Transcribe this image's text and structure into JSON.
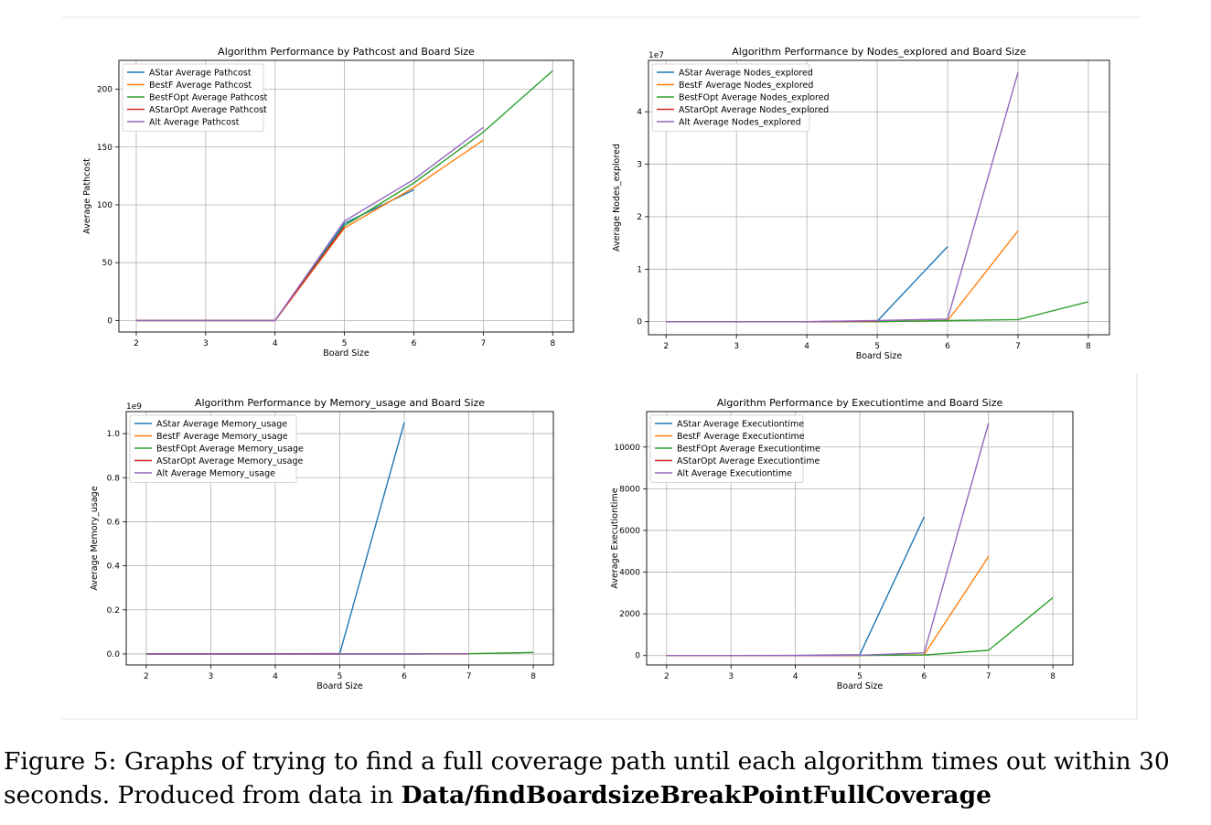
{
  "colors": {
    "AStar": "#1f77b4",
    "BestF": "#ff7f0e",
    "BestFOpt": "#2ca02c",
    "AStarOpt": "#d62728",
    "Alt": "#9467bd"
  },
  "chart_data": [
    {
      "type": "line",
      "title": "Algorithm Performance by Pathcost and Board Size",
      "xlabel": "Board Size",
      "ylabel": "Average Pathcost",
      "offset_label": "",
      "xlim": [
        1.75,
        8.3
      ],
      "ylim": [
        -10,
        225
      ],
      "xticks": [
        2,
        3,
        4,
        5,
        6,
        7,
        8
      ],
      "yticks": [
        0,
        50,
        100,
        150,
        200
      ],
      "ytick_labels": [
        "0",
        "50",
        "100",
        "150",
        "200"
      ],
      "grid": true,
      "legend_position": "upper left",
      "series": [
        {
          "name": "AStar Average Pathcost",
          "color_key": "AStar",
          "x": [
            2,
            3,
            4,
            5,
            6
          ],
          "y": [
            0,
            0,
            0,
            84,
            113
          ]
        },
        {
          "name": "BestF Average Pathcost",
          "color_key": "BestF",
          "x": [
            2,
            3,
            4,
            5,
            6,
            7
          ],
          "y": [
            0,
            0,
            0,
            80,
            115,
            156
          ]
        },
        {
          "name": "BestFOpt Average Pathcost",
          "color_key": "BestFOpt",
          "x": [
            2,
            3,
            4,
            5,
            6,
            7,
            8
          ],
          "y": [
            0,
            0,
            0,
            82,
            119,
            163,
            216
          ]
        },
        {
          "name": "AStarOpt Average Pathcost",
          "color_key": "AStarOpt",
          "x": [
            2,
            3,
            4,
            5
          ],
          "y": [
            0,
            0,
            0,
            81
          ]
        },
        {
          "name": "Alt Average Pathcost",
          "color_key": "Alt",
          "x": [
            2,
            3,
            4,
            5,
            6,
            7
          ],
          "y": [
            0,
            0,
            0,
            86,
            122,
            167
          ]
        }
      ]
    },
    {
      "type": "line",
      "title": "Algorithm Performance by Nodes_explored and Board Size",
      "xlabel": "Board Size",
      "ylabel": "Average Nodes_explored",
      "offset_label": "1e7",
      "xlim": [
        1.75,
        8.3
      ],
      "ylim": [
        -0.25,
        4.98
      ],
      "xticks": [
        2,
        3,
        4,
        5,
        6,
        7,
        8
      ],
      "yticks": [
        0,
        1,
        2,
        3,
        4
      ],
      "ytick_labels": [
        "0",
        "1",
        "2",
        "3",
        "4"
      ],
      "grid": true,
      "legend_position": "upper left",
      "series": [
        {
          "name": "AStar Average Nodes_explored",
          "color_key": "AStar",
          "x": [
            2,
            3,
            4,
            5,
            6
          ],
          "y": [
            0,
            0,
            0,
            0.01,
            1.43
          ]
        },
        {
          "name": "BestF Average Nodes_explored",
          "color_key": "BestF",
          "x": [
            2,
            3,
            4,
            5,
            6,
            7
          ],
          "y": [
            0,
            0,
            0,
            0,
            0.02,
            1.73
          ]
        },
        {
          "name": "BestFOpt Average Nodes_explored",
          "color_key": "BestFOpt",
          "x": [
            2,
            3,
            4,
            5,
            6,
            7,
            8
          ],
          "y": [
            0,
            0,
            0,
            0,
            0.02,
            0.04,
            0.38
          ]
        },
        {
          "name": "AStarOpt Average Nodes_explored",
          "color_key": "AStarOpt",
          "x": [
            2,
            3,
            4,
            5
          ],
          "y": [
            0,
            0,
            0,
            0.01
          ]
        },
        {
          "name": "Alt Average Nodes_explored",
          "color_key": "Alt",
          "x": [
            2,
            3,
            4,
            5,
            6,
            7
          ],
          "y": [
            0,
            0,
            0,
            0.02,
            0.05,
            4.75
          ]
        }
      ]
    },
    {
      "type": "line",
      "title": "Algorithm Performance by Memory_usage and Board Size",
      "xlabel": "Board Size",
      "ylabel": "Average Memory_usage",
      "offset_label": "1e9",
      "xlim": [
        1.69,
        8.31
      ],
      "ylim": [
        -0.05,
        1.1
      ],
      "xticks": [
        2,
        3,
        4,
        5,
        6,
        7,
        8
      ],
      "yticks": [
        0,
        0.2,
        0.4,
        0.6,
        0.8,
        1.0
      ],
      "ytick_labels": [
        "0.0",
        "0.2",
        "0.4",
        "0.6",
        "0.8",
        "1.0"
      ],
      "grid": true,
      "legend_position": "upper left",
      "series": [
        {
          "name": "AStar Average Memory_usage",
          "color_key": "AStar",
          "x": [
            2,
            3,
            4,
            5,
            6
          ],
          "y": [
            0,
            0,
            0,
            0.002,
            1.05
          ]
        },
        {
          "name": "BestF Average Memory_usage",
          "color_key": "BestF",
          "x": [
            2,
            3,
            4,
            5,
            6,
            7
          ],
          "y": [
            0,
            0,
            0,
            0,
            0,
            0
          ]
        },
        {
          "name": "BestFOpt Average Memory_usage",
          "color_key": "BestFOpt",
          "x": [
            2,
            3,
            4,
            5,
            6,
            7,
            8
          ],
          "y": [
            0,
            0,
            0,
            0,
            0,
            0.001,
            0.007
          ]
        },
        {
          "name": "AStarOpt Average Memory_usage",
          "color_key": "AStarOpt",
          "x": [
            2,
            3,
            4,
            5
          ],
          "y": [
            0,
            0,
            0,
            0
          ]
        },
        {
          "name": "Alt Average Memory_usage",
          "color_key": "Alt",
          "x": [
            2,
            3,
            4,
            5,
            6,
            7
          ],
          "y": [
            0,
            0,
            0,
            0,
            0,
            0.001
          ]
        }
      ]
    },
    {
      "type": "line",
      "title": "Algorithm Performance by Executiontime and Board Size",
      "xlabel": "Board Size",
      "ylabel": "Average Executiontime",
      "offset_label": "",
      "xlim": [
        1.69,
        8.31
      ],
      "ylim": [
        -450,
        11700
      ],
      "xticks": [
        2,
        3,
        4,
        5,
        6,
        7,
        8
      ],
      "yticks": [
        0,
        2000,
        4000,
        6000,
        8000,
        10000
      ],
      "ytick_labels": [
        "0",
        "2000",
        "4000",
        "6000",
        "8000",
        "10000"
      ],
      "grid": true,
      "legend_position": "upper left",
      "series": [
        {
          "name": "AStar Average Executiontime",
          "color_key": "AStar",
          "x": [
            2,
            3,
            4,
            5,
            6
          ],
          "y": [
            0,
            0,
            5,
            40,
            6650
          ]
        },
        {
          "name": "BestF Average Executiontime",
          "color_key": "BestF",
          "x": [
            2,
            3,
            4,
            5,
            6,
            7
          ],
          "y": [
            0,
            0,
            0,
            10,
            40,
            4750
          ]
        },
        {
          "name": "BestFOpt Average Executiontime",
          "color_key": "BestFOpt",
          "x": [
            2,
            3,
            4,
            5,
            6,
            7,
            8
          ],
          "y": [
            0,
            0,
            0,
            10,
            30,
            250,
            2780
          ]
        },
        {
          "name": "AStarOpt Average Executiontime",
          "color_key": "AStarOpt",
          "x": [
            2,
            3,
            4,
            5
          ],
          "y": [
            0,
            0,
            0,
            10
          ]
        },
        {
          "name": "Alt Average Executiontime",
          "color_key": "Alt",
          "x": [
            2,
            3,
            4,
            5,
            6,
            7
          ],
          "y": [
            0,
            0,
            0,
            20,
            130,
            11150
          ]
        }
      ]
    }
  ],
  "caption": {
    "prefix": "Figure 5:  Graphs of trying to find a full coverage path until each algorithm times out within 30 seconds. Produced from data in ",
    "bold": "Data/findBoardsizeBreakPointFullCoverage"
  }
}
